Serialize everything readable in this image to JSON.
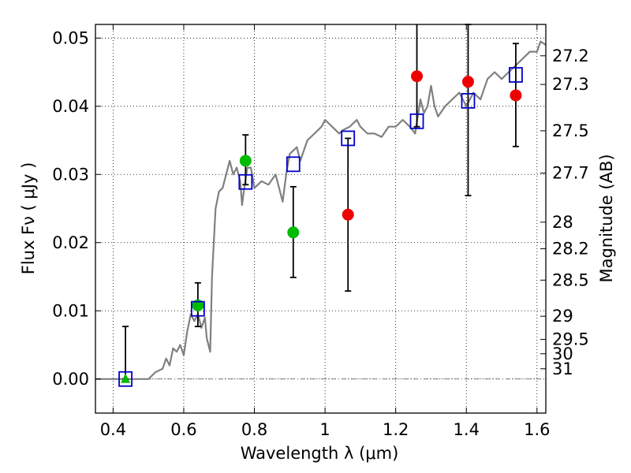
{
  "chart_data": {
    "type": "scatter",
    "xlabel": "Wavelength  λ (μm)",
    "ylabel_left": "Flux  Fν  ( μJy )",
    "ylabel_right": "Magnitude (AB)",
    "xlim": [
      0.35,
      1.625
    ],
    "ylim": [
      -0.005,
      0.052
    ],
    "x_ticks": [
      {
        "value": 0.4,
        "label": "0.4"
      },
      {
        "value": 0.6,
        "label": "0.6"
      },
      {
        "value": 0.8,
        "label": "0.8"
      },
      {
        "value": 1.0,
        "label": "1"
      },
      {
        "value": 1.2,
        "label": "1.2"
      },
      {
        "value": 1.4,
        "label": "1.4"
      },
      {
        "value": 1.6,
        "label": "1.6"
      }
    ],
    "y_ticks": [
      {
        "value": 0.0,
        "label": "0.00"
      },
      {
        "value": 0.01,
        "label": "0.01"
      },
      {
        "value": 0.02,
        "label": "0.02"
      },
      {
        "value": 0.03,
        "label": "0.03"
      },
      {
        "value": 0.04,
        "label": "0.04"
      },
      {
        "value": 0.05,
        "label": "0.05"
      }
    ],
    "right_ticks": [
      {
        "flux": 0.0474,
        "label": "27.2"
      },
      {
        "flux": 0.0432,
        "label": "27.3"
      },
      {
        "flux": 0.0364,
        "label": "27.5"
      },
      {
        "flux": 0.0302,
        "label": "27.7"
      },
      {
        "flux": 0.023,
        "label": "28"
      },
      {
        "flux": 0.0191,
        "label": "28.2"
      },
      {
        "flux": 0.0145,
        "label": "28.5"
      },
      {
        "flux": 0.0092,
        "label": "29"
      },
      {
        "flux": 0.0058,
        "label": "29.5"
      },
      {
        "flux": 0.0037,
        "label": "30"
      },
      {
        "flux": 0.0015,
        "label": "31"
      }
    ],
    "grid": true,
    "zero_line": true,
    "colors": {
      "spectrum": "#808080",
      "model_box": "#0000cc",
      "green_point": "#00bb00",
      "red_point": "#ee0000",
      "error_bar": "#000000"
    },
    "spectrum": [
      [
        0.35,
        0.0
      ],
      [
        0.5,
        0.0
      ],
      [
        0.52,
        0.001
      ],
      [
        0.54,
        0.0015
      ],
      [
        0.55,
        0.003
      ],
      [
        0.56,
        0.002
      ],
      [
        0.57,
        0.0045
      ],
      [
        0.58,
        0.004
      ],
      [
        0.59,
        0.005
      ],
      [
        0.6,
        0.0035
      ],
      [
        0.61,
        0.007
      ],
      [
        0.62,
        0.0095
      ],
      [
        0.63,
        0.0085
      ],
      [
        0.64,
        0.0095
      ],
      [
        0.65,
        0.0075
      ],
      [
        0.66,
        0.009
      ],
      [
        0.665,
        0.006
      ],
      [
        0.675,
        0.004
      ],
      [
        0.68,
        0.015
      ],
      [
        0.69,
        0.025
      ],
      [
        0.7,
        0.0275
      ],
      [
        0.71,
        0.028
      ],
      [
        0.72,
        0.03
      ],
      [
        0.73,
        0.032
      ],
      [
        0.74,
        0.03
      ],
      [
        0.75,
        0.031
      ],
      [
        0.76,
        0.029
      ],
      [
        0.765,
        0.0255
      ],
      [
        0.77,
        0.0275
      ],
      [
        0.78,
        0.031
      ],
      [
        0.79,
        0.031
      ],
      [
        0.8,
        0.028
      ],
      [
        0.82,
        0.029
      ],
      [
        0.84,
        0.0285
      ],
      [
        0.86,
        0.03
      ],
      [
        0.87,
        0.028
      ],
      [
        0.88,
        0.026
      ],
      [
        0.89,
        0.03
      ],
      [
        0.9,
        0.033
      ],
      [
        0.92,
        0.034
      ],
      [
        0.93,
        0.032
      ],
      [
        0.95,
        0.035
      ],
      [
        0.97,
        0.036
      ],
      [
        0.99,
        0.037
      ],
      [
        1.0,
        0.038
      ],
      [
        1.02,
        0.037
      ],
      [
        1.04,
        0.036
      ],
      [
        1.05,
        0.0365
      ],
      [
        1.07,
        0.037
      ],
      [
        1.09,
        0.038
      ],
      [
        1.1,
        0.037
      ],
      [
        1.12,
        0.036
      ],
      [
        1.14,
        0.036
      ],
      [
        1.16,
        0.0355
      ],
      [
        1.18,
        0.037
      ],
      [
        1.2,
        0.037
      ],
      [
        1.22,
        0.038
      ],
      [
        1.24,
        0.037
      ],
      [
        1.255,
        0.036
      ],
      [
        1.27,
        0.041
      ],
      [
        1.28,
        0.039
      ],
      [
        1.29,
        0.04
      ],
      [
        1.3,
        0.043
      ],
      [
        1.31,
        0.04
      ],
      [
        1.32,
        0.0385
      ],
      [
        1.34,
        0.04
      ],
      [
        1.36,
        0.041
      ],
      [
        1.38,
        0.042
      ],
      [
        1.4,
        0.04
      ],
      [
        1.42,
        0.042
      ],
      [
        1.44,
        0.041
      ],
      [
        1.46,
        0.044
      ],
      [
        1.48,
        0.045
      ],
      [
        1.5,
        0.044
      ],
      [
        1.52,
        0.045
      ],
      [
        1.54,
        0.046
      ],
      [
        1.56,
        0.047
      ],
      [
        1.58,
        0.048
      ],
      [
        1.6,
        0.048
      ],
      [
        1.61,
        0.0495
      ],
      [
        1.625,
        0.049
      ]
    ],
    "model_boxes": [
      {
        "x": 0.435,
        "y": 0.0
      },
      {
        "x": 0.64,
        "y": 0.0103
      },
      {
        "x": 0.775,
        "y": 0.0289
      },
      {
        "x": 0.91,
        "y": 0.0315
      },
      {
        "x": 1.065,
        "y": 0.0353
      },
      {
        "x": 1.26,
        "y": 0.0378
      },
      {
        "x": 1.405,
        "y": 0.0408
      },
      {
        "x": 1.54,
        "y": 0.0446
      }
    ],
    "observations": [
      {
        "x": 0.435,
        "y": 0.0,
        "err_low": 0.0,
        "err_high": 0.0077,
        "color": "green",
        "marker": "triangle"
      },
      {
        "x": 0.64,
        "y": 0.0108,
        "err_low": 0.0031,
        "err_high": 0.0033,
        "color": "green",
        "marker": "circle"
      },
      {
        "x": 0.775,
        "y": 0.032,
        "err_low": 0.0035,
        "err_high": 0.0038,
        "color": "green",
        "marker": "circle"
      },
      {
        "x": 0.91,
        "y": 0.0215,
        "err_low": 0.0066,
        "err_high": 0.0067,
        "color": "green",
        "marker": "circle"
      },
      {
        "x": 1.065,
        "y": 0.0241,
        "err_low": 0.0112,
        "err_high": 0.0112,
        "color": "red",
        "marker": "circle"
      },
      {
        "x": 1.26,
        "y": 0.0444,
        "err_low": 0.0074,
        "err_high": 0.0076,
        "color": "red",
        "marker": "circle"
      },
      {
        "x": 1.405,
        "y": 0.0436,
        "err_low": 0.0167,
        "err_high": 0.0084,
        "color": "red",
        "marker": "circle"
      },
      {
        "x": 1.54,
        "y": 0.0416,
        "err_low": 0.0075,
        "err_high": 0.0076,
        "color": "red",
        "marker": "circle"
      }
    ]
  }
}
